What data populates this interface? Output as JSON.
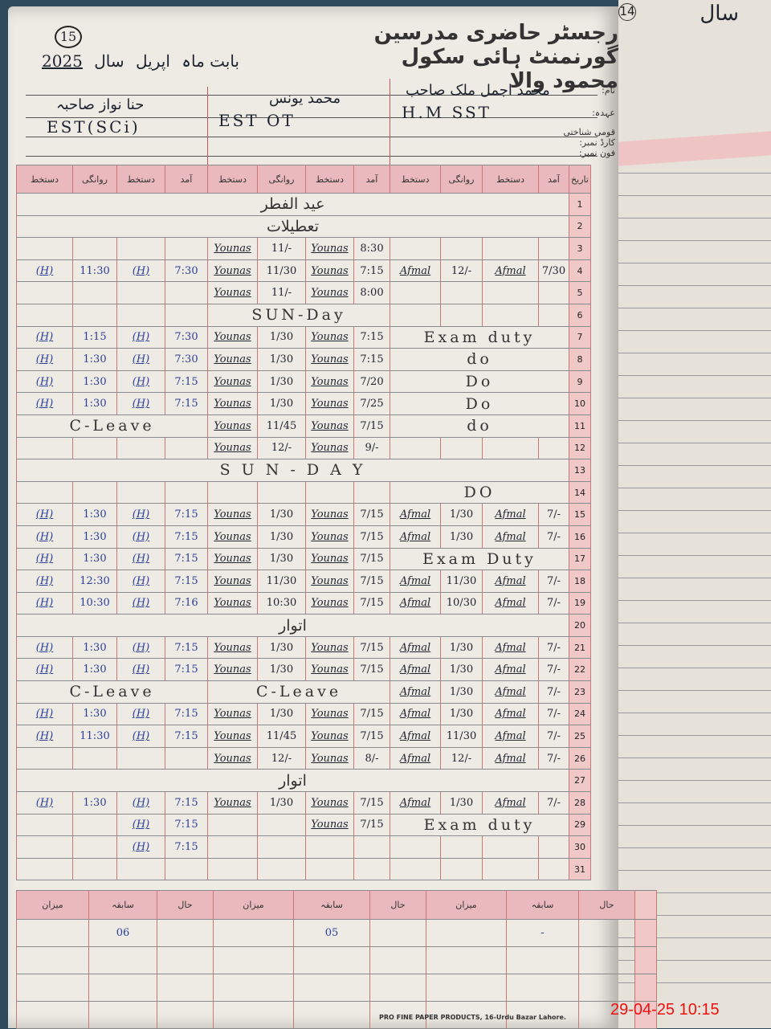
{
  "page_number": "15",
  "title": "رجسٹر حاضری مدرسین گورنمنٹ ہائی سکول محمود والا",
  "subtitle": {
    "month_label": "بابت ماہ",
    "month": "اپریل",
    "year_label": "سال",
    "year": "2025"
  },
  "field_labels": {
    "name": "نام:",
    "designation": "عہدہ:",
    "cnic": "قومی شناختی کارڈ نمبر:",
    "phone": "فون نمبر:"
  },
  "teachers": [
    {
      "name": "حنا نواز صاحبہ",
      "designation": "EST(SCi)"
    },
    {
      "name": "محمد یونس",
      "designation": "EST  OT"
    },
    {
      "name": "محمد اجمل ملک صاحب",
      "designation": "H.M  SST"
    }
  ],
  "column_headers": [
    "دستخط",
    "روانگی",
    "دستخط",
    "آمد",
    "دستخط",
    "روانگی",
    "دستخط",
    "آمد",
    "دستخط",
    "روانگی",
    "دستخط",
    "آمد",
    "تاریخ"
  ],
  "rows": [
    {
      "date": "1",
      "full": "عید الفطر"
    },
    {
      "date": "2",
      "full": "تعطیلات"
    },
    {
      "date": "3",
      "blocks": [
        [
          "",
          "",
          "",
          ""
        ],
        [
          "Younas",
          "11/-",
          "Younas",
          "8:30"
        ],
        [
          "",
          "",
          "",
          ""
        ]
      ]
    },
    {
      "date": "4",
      "blocks": [
        [
          "(H)",
          "11:30",
          "(H)",
          "7:30"
        ],
        [
          "Younas",
          "11/30",
          "Younas",
          "7:15"
        ],
        [
          "Afmal",
          "12/-",
          "Afmal",
          "7/30"
        ]
      ]
    },
    {
      "date": "5",
      "blocks": [
        [
          "",
          "",
          "",
          ""
        ],
        [
          "Younas",
          "11/-",
          "Younas",
          "8:00"
        ],
        [
          "",
          "",
          "",
          ""
        ]
      ]
    },
    {
      "date": "6",
      "blocks": [
        [
          "",
          "",
          "",
          ""
        ],
        "SUN-Day",
        [
          "",
          "",
          "",
          ""
        ]
      ]
    },
    {
      "date": "7",
      "blocks": [
        [
          "(H)",
          "1:15",
          "(H)",
          "7:30"
        ],
        [
          "Younas",
          "1/30",
          "Younas",
          "7:15"
        ],
        "Exam duty"
      ]
    },
    {
      "date": "8",
      "blocks": [
        [
          "(H)",
          "1:30",
          "(H)",
          "7:30"
        ],
        [
          "Younas",
          "1/30",
          "Younas",
          "7:15"
        ],
        "do"
      ]
    },
    {
      "date": "9",
      "blocks": [
        [
          "(H)",
          "1:30",
          "(H)",
          "7:15"
        ],
        [
          "Younas",
          "1/30",
          "Younas",
          "7/20"
        ],
        "Do"
      ]
    },
    {
      "date": "10",
      "blocks": [
        [
          "(H)",
          "1:30",
          "(H)",
          "7:15"
        ],
        [
          "Younas",
          "1/30",
          "Younas",
          "7/25"
        ],
        "Do"
      ]
    },
    {
      "date": "11",
      "blocks": [
        "C-Leave",
        [
          "Younas",
          "11/45",
          "Younas",
          "7/15"
        ],
        "do"
      ]
    },
    {
      "date": "12",
      "blocks": [
        [
          "",
          "",
          "",
          ""
        ],
        [
          "Younas",
          "12/-",
          "Younas",
          "9/-"
        ],
        [
          "",
          "",
          "",
          ""
        ]
      ]
    },
    {
      "date": "13",
      "full": "S U N - D A Y"
    },
    {
      "date": "14",
      "blocks": [
        [
          "",
          "",
          "",
          ""
        ],
        [
          "",
          "",
          "",
          ""
        ],
        "DO"
      ]
    },
    {
      "date": "15",
      "blocks": [
        [
          "(H)",
          "1:30",
          "(H)",
          "7:15"
        ],
        [
          "Younas",
          "1/30",
          "Younas",
          "7/15"
        ],
        [
          "Afmal",
          "1/30",
          "Afmal",
          "7/-"
        ]
      ]
    },
    {
      "date": "16",
      "blocks": [
        [
          "(H)",
          "1:30",
          "(H)",
          "7:15"
        ],
        [
          "Younas",
          "1/30",
          "Younas",
          "7/15"
        ],
        [
          "Afmal",
          "1/30",
          "Afmal",
          "7/-"
        ]
      ]
    },
    {
      "date": "17",
      "blocks": [
        [
          "(H)",
          "1:30",
          "(H)",
          "7:15"
        ],
        [
          "Younas",
          "1/30",
          "Younas",
          "7/15"
        ],
        "Exam Duty"
      ]
    },
    {
      "date": "18",
      "blocks": [
        [
          "(H)",
          "12:30",
          "(H)",
          "7:15"
        ],
        [
          "Younas",
          "11/30",
          "Younas",
          "7/15"
        ],
        [
          "Afmal",
          "11/30",
          "Afmal",
          "7/-"
        ]
      ]
    },
    {
      "date": "19",
      "blocks": [
        [
          "(H)",
          "10:30",
          "(H)",
          "7:16"
        ],
        [
          "Younas",
          "10:30",
          "Younas",
          "7/15"
        ],
        [
          "Afmal",
          "10/30",
          "Afmal",
          "7/-"
        ]
      ]
    },
    {
      "date": "20",
      "full": "اتوار"
    },
    {
      "date": "21",
      "blocks": [
        [
          "(H)",
          "1:30",
          "(H)",
          "7:15"
        ],
        [
          "Younas",
          "1/30",
          "Younas",
          "7/15"
        ],
        [
          "Afmal",
          "1/30",
          "Afmal",
          "7/-"
        ]
      ]
    },
    {
      "date": "22",
      "blocks": [
        [
          "(H)",
          "1:30",
          "(H)",
          "7:15"
        ],
        [
          "Younas",
          "1/30",
          "Younas",
          "7/15"
        ],
        [
          "Afmal",
          "1/30",
          "Afmal",
          "7/-"
        ]
      ]
    },
    {
      "date": "23",
      "blocks": [
        "C-Leave",
        "C-Leave",
        [
          "Afmal",
          "1/30",
          "Afmal",
          "7/-"
        ]
      ]
    },
    {
      "date": "24",
      "blocks": [
        [
          "(H)",
          "1:30",
          "(H)",
          "7:15"
        ],
        [
          "Younas",
          "1/30",
          "Younas",
          "7/15"
        ],
        [
          "Afmal",
          "1/30",
          "Afmal",
          "7/-"
        ]
      ]
    },
    {
      "date": "25",
      "blocks": [
        [
          "(H)",
          "11:30",
          "(H)",
          "7:15"
        ],
        [
          "Younas",
          "11/45",
          "Younas",
          "7/15"
        ],
        [
          "Afmal",
          "11/30",
          "Afmal",
          "7/-"
        ]
      ]
    },
    {
      "date": "26",
      "blocks": [
        [
          "",
          "",
          "",
          ""
        ],
        [
          "Younas",
          "12/-",
          "Younas",
          "8/-"
        ],
        [
          "Afmal",
          "12/-",
          "Afmal",
          "7/-"
        ]
      ]
    },
    {
      "date": "27",
      "full": "اتوار"
    },
    {
      "date": "28",
      "blocks": [
        [
          "(H)",
          "1:30",
          "(H)",
          "7:15"
        ],
        [
          "Younas",
          "1/30",
          "Younas",
          "7/15"
        ],
        [
          "Afmal",
          "1/30",
          "Afmal",
          "7/-"
        ]
      ]
    },
    {
      "date": "29",
      "blocks": [
        [
          "",
          "",
          "(H)",
          "7:15"
        ],
        [
          "",
          "",
          "Younas",
          "7/15"
        ],
        "Exam duty"
      ]
    },
    {
      "date": "30",
      "blocks": [
        [
          "",
          "",
          "(H)",
          "7:15"
        ],
        [
          "",
          "",
          "",
          ""
        ],
        [
          "",
          "",
          "",
          ""
        ]
      ]
    },
    {
      "date": "31",
      "blocks": [
        [
          "",
          "",
          "",
          ""
        ],
        [
          "",
          "",
          "",
          ""
        ],
        [
          "",
          "",
          "",
          ""
        ]
      ]
    }
  ],
  "summary": {
    "headers": [
      "میزان",
      "سابقہ",
      "حال",
      "میزان",
      "سابقہ",
      "حال",
      "میزان",
      "سابقہ",
      "حال"
    ],
    "values": [
      "",
      "06",
      "",
      "",
      "05",
      "",
      "",
      "-",
      ""
    ]
  },
  "right_page": {
    "page_number": "14",
    "label": "سال"
  },
  "footer": "PRO FINE PAPER PRODUCTS, 16-Urdu Bazar Lahore.",
  "timestamp": "29-04-25  10:15"
}
